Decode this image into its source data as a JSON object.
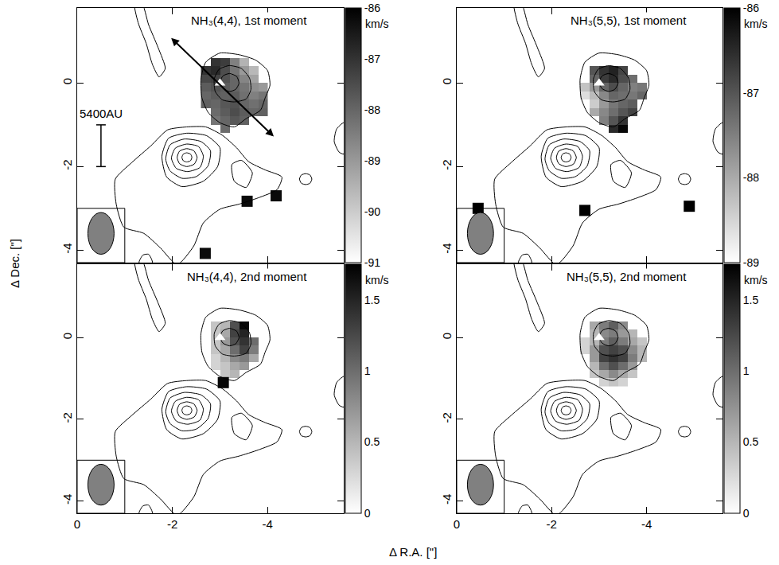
{
  "shared": {
    "xlabel": "Δ R.A. [\"]",
    "ylabel": "Δ Dec. [\"]",
    "xlim": [
      0,
      -5.6
    ],
    "ylim": [
      -4.3,
      1.8
    ],
    "xticks": [
      0,
      -2,
      -4
    ],
    "yticks": [
      -4,
      -2,
      0
    ],
    "source": {
      "x": -3.0,
      "y": 0.0,
      "marker": "triangle"
    },
    "beam": {
      "x": -0.5,
      "y": -3.6,
      "major": 1.0,
      "minor": 0.55
    },
    "contours": [
      {
        "x": [
          -3.0,
          -3.06,
          -3.2,
          -3.35,
          -3.4,
          -3.33,
          -3.2,
          -3.06
        ],
        "y": [
          0.02,
          0.17,
          0.23,
          0.16,
          0.0,
          -0.15,
          -0.2,
          -0.13
        ]
      },
      {
        "x": [
          -2.88,
          -2.98,
          -3.2,
          -3.45,
          -3.62,
          -3.65,
          -3.55,
          -3.3,
          -3.05,
          -2.9
        ],
        "y": [
          0.1,
          0.33,
          0.42,
          0.35,
          0.12,
          -0.15,
          -0.38,
          -0.45,
          -0.4,
          -0.2
        ]
      },
      {
        "x": [
          -2.7,
          -3.0,
          -3.4,
          -3.75,
          -4.0,
          -4.05,
          -3.95,
          -3.85,
          -3.55,
          -3.3,
          -3.0,
          -2.75,
          -2.62,
          -2.6
        ],
        "y": [
          0.5,
          0.72,
          0.68,
          0.55,
          0.3,
          -0.05,
          -0.35,
          -0.65,
          -0.85,
          -1.05,
          -0.95,
          -0.7,
          -0.35,
          0.1
        ]
      },
      {
        "x": [
          -1.35,
          -1.5,
          -1.7,
          -1.85,
          -1.72,
          -1.58,
          -1.45,
          -1.28,
          -1.2
        ],
        "y": [
          1.95,
          1.4,
          0.85,
          0.35,
          0.15,
          0.45,
          0.95,
          1.45,
          1.95
        ]
      },
      {
        "x": [
          -2.2,
          -2.23,
          -2.3,
          -2.38,
          -2.41,
          -2.38,
          -2.3,
          -2.23
        ],
        "y": [
          -1.78,
          -1.7,
          -1.67,
          -1.7,
          -1.78,
          -1.86,
          -1.89,
          -1.86
        ]
      },
      {
        "x": [
          -2.1,
          -2.15,
          -2.3,
          -2.45,
          -2.52,
          -2.46,
          -2.3,
          -2.15
        ],
        "y": [
          -1.78,
          -1.63,
          -1.57,
          -1.62,
          -1.78,
          -1.94,
          -2.0,
          -1.93
        ]
      },
      {
        "x": [
          -1.98,
          -2.06,
          -2.3,
          -2.55,
          -2.65,
          -2.58,
          -2.32,
          -2.08
        ],
        "y": [
          -1.8,
          -1.56,
          -1.46,
          -1.52,
          -1.75,
          -2.02,
          -2.12,
          -2.04
        ]
      },
      {
        "x": [
          -1.86,
          -1.95,
          -2.25,
          -2.6,
          -2.8,
          -2.75,
          -2.5,
          -2.2,
          -1.95
        ],
        "y": [
          -1.82,
          -1.48,
          -1.34,
          -1.4,
          -1.62,
          -1.98,
          -2.24,
          -2.28,
          -2.1
        ]
      },
      {
        "x": [
          -1.78,
          -1.92,
          -2.3,
          -2.72,
          -3.0,
          -2.95,
          -2.65,
          -2.2,
          -1.88
        ],
        "y": [
          -1.75,
          -1.32,
          -1.2,
          -1.26,
          -1.55,
          -2.0,
          -2.35,
          -2.48,
          -2.25
        ]
      },
      {
        "x": [
          -2.3,
          -1.9,
          -1.55,
          -1.15,
          -0.8,
          -0.82,
          -0.98,
          -1.4,
          -1.75,
          -2.1,
          -2.45,
          -2.65,
          -3.0,
          -3.4,
          -3.8,
          -4.2,
          -4.3,
          -3.95,
          -3.6,
          -3.35,
          -3.05,
          -2.7
        ],
        "y": [
          -1.05,
          -1.12,
          -1.5,
          -1.9,
          -2.3,
          -2.9,
          -3.45,
          -3.6,
          -3.95,
          -4.35,
          -3.9,
          -3.35,
          -3.02,
          -2.9,
          -2.75,
          -2.55,
          -2.25,
          -2.08,
          -1.88,
          -1.55,
          -1.25,
          -1.05
        ]
      },
      {
        "x": [
          -3.25,
          -3.45,
          -3.68,
          -3.55,
          -3.3
        ],
        "y": [
          -1.95,
          -1.85,
          -2.15,
          -2.5,
          -2.35
        ]
      },
      {
        "x": [
          -4.67,
          -4.71,
          -4.8,
          -4.89,
          -4.93,
          -4.89,
          -4.8,
          -4.71
        ],
        "y": [
          -2.3,
          -2.2,
          -2.17,
          -2.2,
          -2.3,
          -2.4,
          -2.43,
          -2.4
        ]
      },
      {
        "x": [
          -5.6,
          -5.45,
          -5.4,
          -5.5,
          -5.6
        ],
        "y": [
          -0.95,
          -1.1,
          -1.4,
          -1.65,
          -1.7
        ]
      },
      {
        "x": [
          -1.3,
          -1.38,
          -1.5,
          -1.58
        ],
        "y": [
          -4.3,
          -4.12,
          -4.1,
          -4.3
        ]
      }
    ]
  },
  "chart_data": [
    {
      "type": "heatmap",
      "title": "NH₃(4,4), 1st moment",
      "colorbar_title": "km/s",
      "zlim": [
        -91,
        -86
      ],
      "zticks": [
        -86,
        -87,
        -88,
        -89,
        -90,
        -91
      ],
      "tick_labels": "y",
      "x": [
        -2.7,
        -2.9,
        -3.1,
        -3.3,
        -3.5,
        -3.7,
        -3.9
      ],
      "y": [
        -1.1,
        -0.9,
        -0.7,
        -0.5,
        -0.3,
        -0.1,
        0.1,
        0.3,
        0.5
      ],
      "z": [
        [
          null,
          null,
          -88.1,
          null,
          null,
          null,
          null
        ],
        [
          null,
          -88.3,
          -88.0,
          -87.7,
          -87.9,
          null,
          null
        ],
        [
          null,
          -88.1,
          -87.8,
          -87.5,
          -87.8,
          -88.0,
          -87.9
        ],
        [
          -87.9,
          -88.0,
          -87.7,
          -87.6,
          -88.0,
          -88.2,
          -88.0
        ],
        [
          -88.0,
          -87.8,
          -87.9,
          -87.8,
          -88.2,
          -88.5,
          -88.3
        ],
        [
          -87.8,
          -87.6,
          -87.8,
          -88.0,
          -88.3,
          -88.8,
          -89.0
        ],
        [
          -87.4,
          -87.3,
          -87.6,
          -88.0,
          -88.6,
          -89.2,
          null
        ],
        [
          -87.0,
          -86.8,
          -87.5,
          -88.3,
          -89.0,
          -89.6,
          null
        ],
        [
          null,
          -87.0,
          -87.2,
          -88.5,
          -89.5,
          null,
          null
        ]
      ],
      "spots": {
        "x": [
          -3.57,
          -4.18,
          -2.69
        ],
        "y": [
          -2.83,
          -2.7,
          -4.08
        ],
        "values": [
          -86.2,
          -86.2,
          -86.2
        ]
      },
      "arrow": {
        "x": [
          -1.95,
          -4.13
        ],
        "y": [
          1.11,
          -1.28
        ]
      },
      "scale_bar": {
        "label": "5400AU",
        "x": -0.5,
        "y": [
          -1,
          -2
        ]
      }
    },
    {
      "type": "heatmap",
      "title": "NH₃(5,5), 1st moment",
      "colorbar_title": "km/s",
      "zlim": [
        -89,
        -86
      ],
      "zticks": [
        -86,
        -87,
        -88,
        -89
      ],
      "tick_labels": "y",
      "x": [
        -2.7,
        -2.9,
        -3.1,
        -3.3,
        -3.5,
        -3.7,
        -3.9
      ],
      "y": [
        -1.1,
        -0.9,
        -0.7,
        -0.5,
        -0.3,
        -0.1,
        0.1,
        0.3,
        0.5
      ],
      "z": [
        [
          null,
          null,
          null,
          -86.5,
          -86.1,
          null,
          null
        ],
        [
          null,
          null,
          -87.5,
          -87.0,
          -86.6,
          null,
          null
        ],
        [
          null,
          -88.0,
          -87.6,
          -87.3,
          -87.0,
          -86.8,
          null
        ],
        [
          null,
          -88.4,
          -87.8,
          -87.4,
          -87.2,
          -87.1,
          null
        ],
        [
          -88.6,
          -88.2,
          -87.6,
          -87.2,
          -87.3,
          -87.4,
          -87.2
        ],
        [
          -88.3,
          -87.8,
          -87.2,
          -86.9,
          -87.2,
          -87.5,
          -87.4
        ],
        [
          null,
          -87.2,
          -86.7,
          -86.5,
          -86.9,
          -87.3,
          null
        ],
        [
          null,
          -87.0,
          -86.6,
          -86.4,
          -86.8,
          null,
          null
        ],
        [
          null,
          null,
          null,
          null,
          null,
          null,
          null
        ]
      ],
      "spots": {
        "x": [
          -0.45,
          -2.7,
          -4.9
        ],
        "y": [
          -3.0,
          -3.05,
          -2.95
        ],
        "values": [
          -86.0,
          -86.0,
          -86.0
        ]
      }
    },
    {
      "type": "heatmap",
      "title": "NH₃(4,4), 2nd moment",
      "colorbar_title": "km/s",
      "zlim": [
        0,
        1.75
      ],
      "zticks": [
        0,
        0.5,
        1,
        1.5
      ],
      "x": [
        -2.7,
        -2.9,
        -3.1,
        -3.3,
        -3.5,
        -3.7,
        -3.9
      ],
      "y": [
        -1.1,
        -0.9,
        -0.7,
        -0.5,
        -0.3,
        -0.1,
        0.1,
        0.3,
        0.5
      ],
      "z": [
        [
          null,
          null,
          null,
          null,
          null,
          null,
          null
        ],
        [
          null,
          null,
          0.4,
          0.5,
          null,
          null,
          null
        ],
        [
          null,
          0.3,
          0.4,
          0.6,
          0.7,
          null,
          null
        ],
        [
          null,
          0.3,
          0.5,
          0.8,
          0.9,
          0.6,
          null
        ],
        [
          null,
          0.4,
          0.6,
          1.0,
          1.3,
          0.9,
          null
        ],
        [
          null,
          0.4,
          0.7,
          1.2,
          1.4,
          1.0,
          null
        ],
        [
          null,
          0.4,
          0.6,
          1.3,
          1.5,
          null,
          null
        ],
        [
          null,
          0.4,
          0.5,
          1.2,
          1.7,
          null,
          null
        ],
        [
          null,
          null,
          null,
          null,
          null,
          null,
          null
        ]
      ],
      "spots": {
        "x": [
          -3.07
        ],
        "y": [
          -1.1
        ],
        "values": [
          1.7
        ]
      }
    },
    {
      "type": "heatmap",
      "title": "NH₃(5,5), 2nd moment",
      "colorbar_title": "km/s",
      "zlim": [
        0,
        1.75
      ],
      "zticks": [
        0,
        0.5,
        1,
        1.5
      ],
      "x": [
        -2.7,
        -2.9,
        -3.1,
        -3.3,
        -3.5,
        -3.7,
        -3.9
      ],
      "y": [
        -1.1,
        -0.9,
        -0.7,
        -0.5,
        -0.3,
        -0.1,
        0.1,
        0.3,
        0.5
      ],
      "z": [
        [
          null,
          null,
          0.3,
          0.4,
          0.3,
          null,
          null
        ],
        [
          null,
          0.4,
          0.6,
          0.8,
          0.6,
          0.4,
          null
        ],
        [
          null,
          0.5,
          1.0,
          1.2,
          1.0,
          0.7,
          null
        ],
        [
          null,
          0.7,
          1.3,
          1.4,
          1.3,
          0.9,
          0.5
        ],
        [
          0.3,
          0.7,
          1.2,
          1.3,
          1.2,
          0.8,
          0.5
        ],
        [
          0.3,
          0.5,
          0.9,
          1.1,
          0.9,
          0.6,
          0.4
        ],
        [
          null,
          0.5,
          0.8,
          0.9,
          0.7,
          0.5,
          null
        ],
        [
          null,
          0.6,
          0.9,
          1.1,
          0.8,
          null,
          null
        ],
        [
          null,
          null,
          null,
          null,
          null,
          null,
          null
        ]
      ]
    }
  ]
}
